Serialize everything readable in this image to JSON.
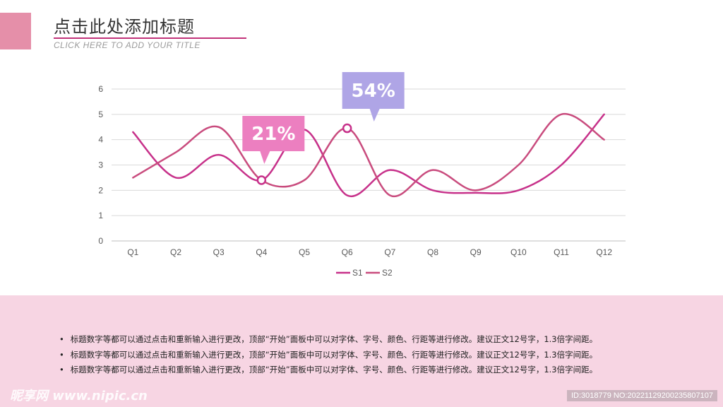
{
  "header": {
    "title": "点击此处添加标题",
    "subtitle": "CLICK HERE TO ADD YOUR TITLE"
  },
  "chart_data": {
    "type": "line",
    "categories": [
      "Q1",
      "Q2",
      "Q3",
      "Q4",
      "Q5",
      "Q6",
      "Q7",
      "Q8",
      "Q9",
      "Q10",
      "Q11",
      "Q12"
    ],
    "series": [
      {
        "name": "S1",
        "color": "#C7318A",
        "values": [
          4.3,
          2.5,
          3.4,
          2.4,
          4.4,
          1.8,
          2.8,
          2.0,
          1.9,
          2.0,
          3.0,
          5.0
        ]
      },
      {
        "name": "S2",
        "color": "#C94C7E",
        "values": [
          2.5,
          3.5,
          4.5,
          2.4,
          2.4,
          4.45,
          1.8,
          2.8,
          2.0,
          3.0,
          5.0,
          4.0
        ]
      }
    ],
    "ylim": [
      0,
      6
    ],
    "yticks": [
      0,
      1,
      2,
      3,
      4,
      5,
      6
    ],
    "grid": true,
    "legend_position": "bottom",
    "markers": [
      {
        "category": "Q4",
        "value": 2.4
      },
      {
        "category": "Q6",
        "value": 4.45
      }
    ],
    "callouts": [
      {
        "text": "21%",
        "color": "#EC7FC0",
        "category": "Q4"
      },
      {
        "text": "54%",
        "color": "#AFA5E6",
        "category": "Q6"
      }
    ]
  },
  "footer": {
    "bullets": [
      "标题数字等都可以通过点击和重新输入进行更改，顶部“开始”面板中可以对字体、字号、颜色、行距等进行修改。建议正文12号字，1.3倍字间距。",
      "标题数字等都可以通过点击和重新输入进行更改，顶部“开始”面板中可以对字体、字号、颜色、行距等进行修改。建议正文12号字，1.3倍字间距。",
      "标题数字等都可以通过点击和重新输入进行更改，顶部“开始”面板中可以对字体、字号、颜色、行距等进行修改。建议正文12号字，1.3倍字间距。"
    ]
  },
  "watermark": {
    "logo": "昵享网 www.nipic.cn",
    "id": "ID:3018779 NO:20221129200235807107"
  }
}
